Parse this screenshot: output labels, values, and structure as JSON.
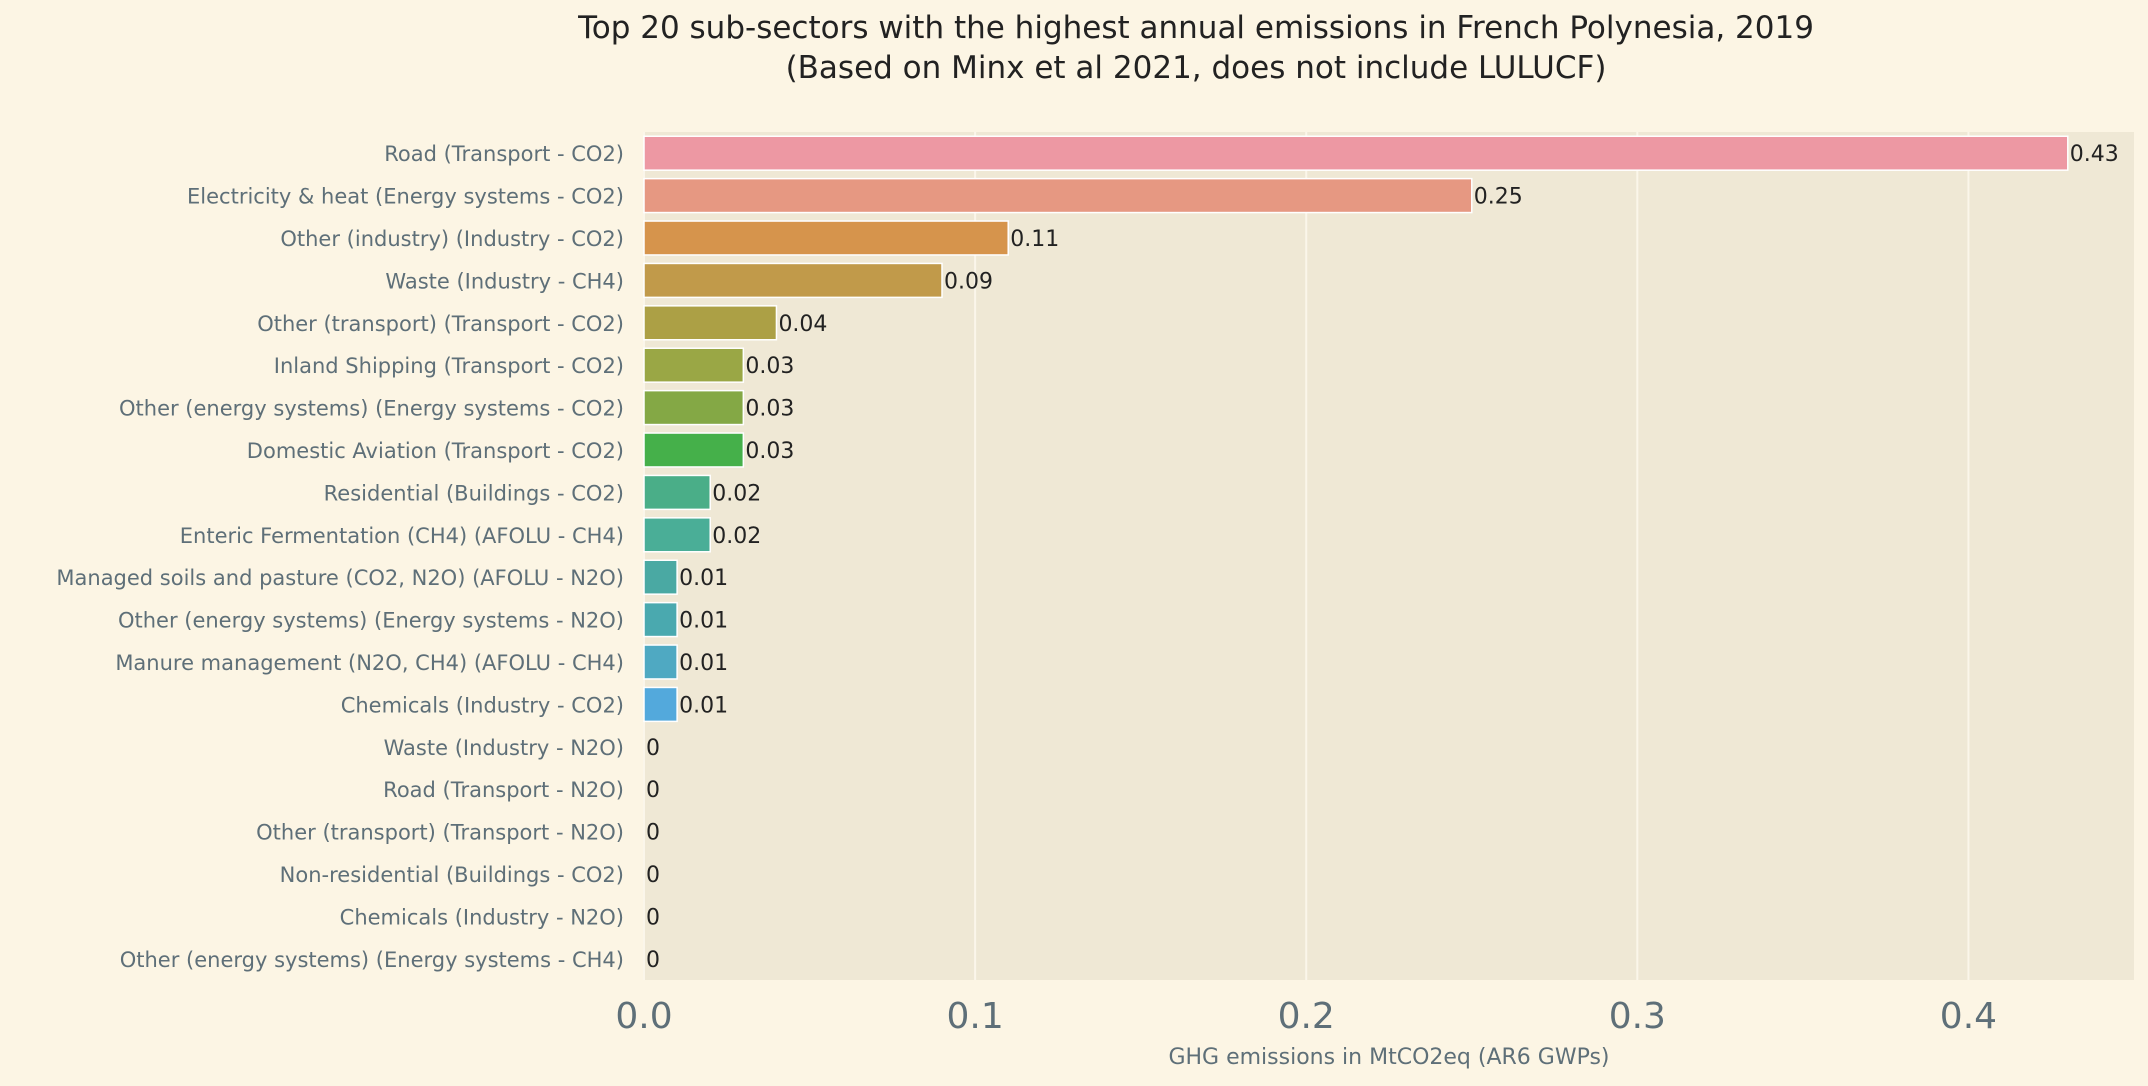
{
  "chart_data": {
    "type": "bar",
    "orientation": "horizontal",
    "title": "Top 20 sub-sectors with the highest annual emissions in French Polynesia, 2019",
    "subtitle": "(Based on Minx et al 2021, does not include LULUCF)",
    "xlabel": "GHG emissions in MtCO2eq (AR6 GWPs)",
    "ylabel": "",
    "xlim": [
      0,
      0.45
    ],
    "xticks": [
      0.0,
      0.1,
      0.2,
      0.3,
      0.4
    ],
    "xtick_labels": [
      "0.0",
      "0.1",
      "0.2",
      "0.3",
      "0.4"
    ],
    "grid": true,
    "categories": [
      "Road (Transport - CO2)",
      "Electricity & heat (Energy systems - CO2)",
      "Other (industry) (Industry - CO2)",
      "Waste (Industry - CH4)",
      "Other (transport) (Transport - CO2)",
      "Inland Shipping (Transport - CO2)",
      "Other (energy systems) (Energy systems - CO2)",
      "Domestic Aviation (Transport - CO2)",
      "Residential (Buildings - CO2)",
      "Enteric Fermentation (CH4) (AFOLU - CH4)",
      "Managed soils and pasture (CO2, N2O) (AFOLU - N2O)",
      "Other (energy systems) (Energy systems - N2O)",
      "Manure management (N2O, CH4) (AFOLU - CH4)",
      "Chemicals (Industry - CO2)",
      "Waste (Industry - N2O)",
      "Road (Transport - N2O)",
      "Other (transport) (Transport - N2O)",
      "Non-residential (Buildings - CO2)",
      "Chemicals (Industry - N2O)",
      "Other (energy systems) (Energy systems - CH4)"
    ],
    "values": [
      0.43,
      0.25,
      0.11,
      0.09,
      0.04,
      0.03,
      0.03,
      0.03,
      0.02,
      0.02,
      0.01,
      0.01,
      0.01,
      0.01,
      0,
      0,
      0,
      0,
      0,
      0
    ],
    "value_labels": [
      "0.43",
      "0.25",
      "0.11",
      "0.09",
      "0.04",
      "0.03",
      "0.03",
      "0.03",
      "0.02",
      "0.02",
      "0.01",
      "0.01",
      "0.01",
      "0.01",
      "0",
      "0",
      "0",
      "0",
      "0",
      "0"
    ],
    "colors": [
      "#ed98a3",
      "#e69882",
      "#d6944c",
      "#c19a4a",
      "#aca045",
      "#9aa745",
      "#84a845",
      "#45b04a",
      "#4aae88",
      "#4aae97",
      "#4aa9a3",
      "#4aa9af",
      "#4fa9c2",
      "#53a9dc",
      "#5aaae0",
      "#7aa5e0",
      "#9a9fe0",
      "#b796d8",
      "#d08fcf",
      "#e390bd"
    ],
    "background_colors": {
      "page": "#fcf5e4",
      "plot": "#efe8d5"
    }
  }
}
